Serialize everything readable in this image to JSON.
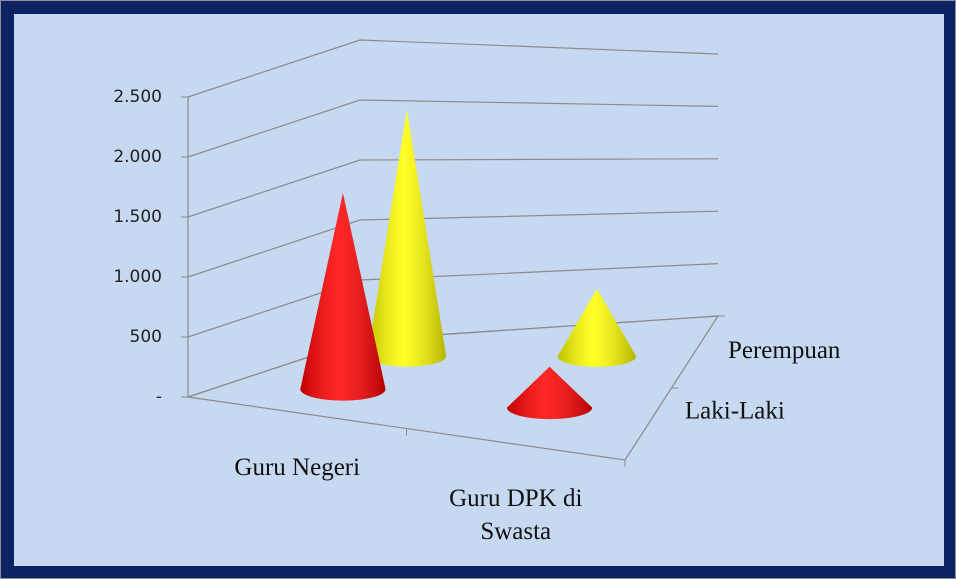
{
  "chart_data": {
    "type": "cone3d",
    "categories": [
      "Guru Negeri",
      "Guru DPK di Swasta"
    ],
    "series": [
      {
        "name": "Laki-Laki",
        "color": "#ff0000",
        "values": [
          1650,
          350
        ]
      },
      {
        "name": "Perempuan",
        "color": "#ffff00",
        "values": [
          2100,
          600
        ]
      }
    ],
    "ylim": [
      0,
      2500
    ],
    "yticks": [
      {
        "value": 0,
        "label": "-"
      },
      500,
      {
        "value": 1000,
        "label": "1.000"
      },
      {
        "value": 1500,
        "label": "1.500"
      },
      {
        "value": 2000,
        "label": "2.000"
      },
      {
        "value": 2500,
        "label": "2.500"
      }
    ],
    "grid": true
  }
}
